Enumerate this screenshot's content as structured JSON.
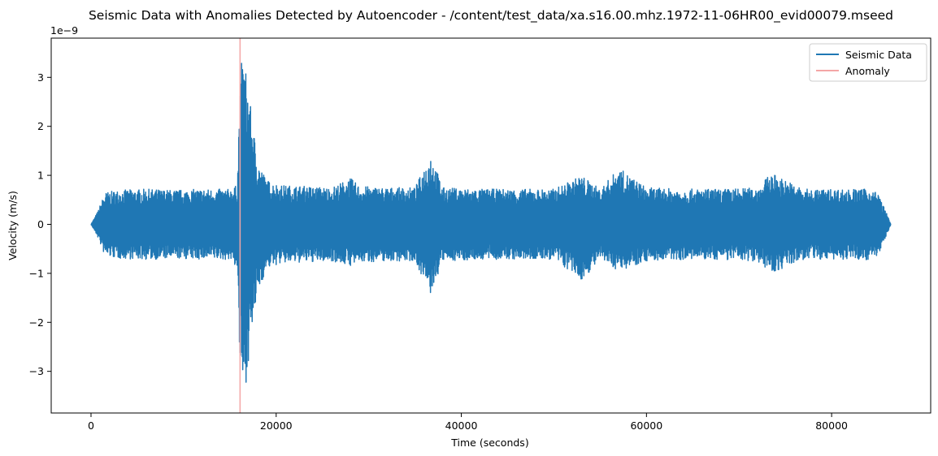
{
  "chart_data": {
    "type": "line",
    "title": "Seismic Data with Anomalies Detected by Autoencoder - /content/test_data/xa.s16.00.mhz.1972-11-06HR00_evid00079.mseed",
    "xlabel": "Time (seconds)",
    "ylabel": "Velocity (m/s)",
    "y_offset_text": "1e−9",
    "xlim": [
      -4300,
      90700
    ],
    "ylim": [
      -3.85,
      3.8
    ],
    "x_ticks": [
      0,
      20000,
      40000,
      60000,
      80000
    ],
    "x_tick_labels": [
      "0",
      "20000",
      "40000",
      "60000",
      "80000"
    ],
    "y_ticks": [
      -3,
      -2,
      -1,
      0,
      1,
      2,
      3
    ],
    "y_tick_labels": [
      "−3",
      "−2",
      "−1",
      "0",
      "1",
      "2",
      "3"
    ],
    "grid": false,
    "legend_position": "top-right",
    "series": [
      {
        "name": "Seismic Data",
        "color": "#1f77b4",
        "kind": "signal-envelope",
        "x": [
          0,
          700,
          1500,
          3000,
          6000,
          9000,
          12000,
          15000,
          15800,
          16000,
          16300,
          16700,
          17300,
          18000,
          19000,
          20500,
          23000,
          26000,
          28000,
          29000,
          32000,
          35000,
          36700,
          38000,
          42000,
          46000,
          50000,
          53000,
          55000,
          57000,
          60000,
          64000,
          68000,
          72000,
          73500,
          77000,
          81000,
          84000,
          85000,
          86100,
          86400
        ],
        "upper": [
          0,
          0.25,
          0.65,
          0.7,
          0.72,
          0.7,
          0.72,
          0.72,
          0.8,
          2.3,
          3.45,
          3.2,
          2.3,
          1.3,
          0.9,
          0.8,
          0.78,
          0.75,
          0.95,
          0.78,
          0.75,
          0.75,
          1.45,
          0.75,
          0.72,
          0.72,
          0.72,
          1.0,
          0.72,
          1.15,
          0.75,
          0.72,
          0.72,
          0.75,
          1.05,
          0.72,
          0.72,
          0.72,
          0.65,
          0.15,
          0
        ],
        "lower": [
          0,
          -0.25,
          -0.65,
          -0.7,
          -0.72,
          -0.7,
          -0.72,
          -0.72,
          -0.9,
          -2.6,
          -3.45,
          -3.3,
          -2.3,
          -1.4,
          -0.9,
          -0.8,
          -0.78,
          -0.75,
          -0.85,
          -0.78,
          -0.75,
          -0.75,
          -1.45,
          -0.75,
          -0.72,
          -0.72,
          -0.72,
          -1.15,
          -0.72,
          -0.95,
          -0.75,
          -0.72,
          -0.72,
          -0.75,
          -1.0,
          -0.72,
          -0.72,
          -0.72,
          -0.65,
          -0.15,
          0
        ]
      }
    ],
    "anomaly": {
      "name": "Anomaly",
      "color": "#f4a6a6",
      "x": 16100
    },
    "legend": [
      "Seismic Data",
      "Anomaly"
    ]
  }
}
